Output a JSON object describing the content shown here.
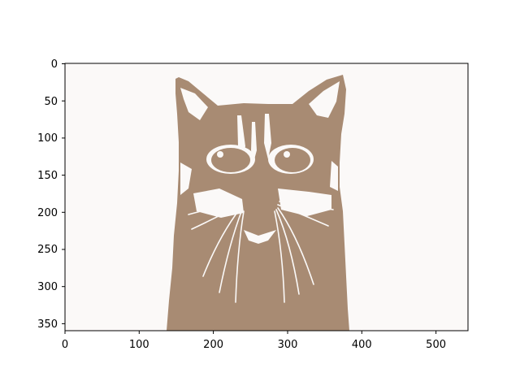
{
  "chart_data": {
    "type": "image",
    "title": "",
    "xlabel": "",
    "ylabel": "",
    "xlim": [
      0,
      543
    ],
    "ylim": [
      360,
      0
    ],
    "x_ticks": [
      "0",
      "100",
      "200",
      "300",
      "400",
      "500"
    ],
    "y_ticks": [
      "0",
      "50",
      "100",
      "150",
      "200",
      "250",
      "300",
      "350"
    ],
    "grid": false,
    "background_color": "#fbf9f8",
    "subject_color": "#a88b73",
    "subject": "posterized cat face"
  }
}
